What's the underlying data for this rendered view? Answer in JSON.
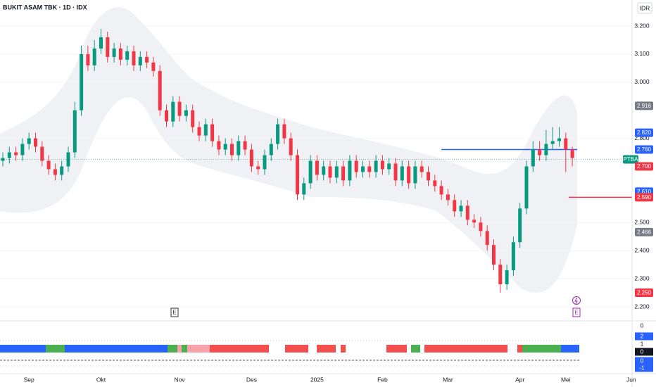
{
  "chart_data": {
    "type": "candlestick",
    "title": "BUKIT ASAM TBK · 1D · IDX",
    "currency": "IDR",
    "categories": [
      null,
      null,
      null,
      null,
      "Sep",
      null,
      null,
      null,
      null,
      null,
      null,
      null,
      null,
      null,
      null,
      "Okt",
      null,
      null,
      null,
      null,
      null,
      null,
      null,
      null,
      null,
      null,
      null,
      "Nov",
      null,
      null,
      null,
      null,
      null,
      null,
      null,
      null,
      null,
      null,
      "Des",
      null,
      null,
      null,
      null,
      null,
      null,
      null,
      null,
      null,
      "2025",
      null,
      null,
      null,
      null,
      null,
      null,
      null,
      null,
      null,
      "Feb",
      null,
      null,
      null,
      null,
      null,
      null,
      null,
      null,
      null,
      "Mar",
      null,
      null,
      null,
      null,
      null,
      null,
      null,
      null,
      null,
      null,
      "Apr",
      null,
      null,
      null,
      null,
      null,
      null,
      "Mei",
      null,
      null,
      null,
      null,
      null,
      null,
      null,
      null,
      null,
      "Jun"
    ],
    "open": [
      2720,
      2730,
      2750,
      2740,
      2780,
      2800,
      2770,
      2720,
      2690,
      2670,
      2700,
      2750,
      2900,
      3100,
      3060,
      3120,
      3160,
      3090,
      3120,
      3080,
      3110,
      3060,
      3090,
      3070,
      3040,
      2900,
      2860,
      2930,
      2880,
      2900,
      2840,
      2810,
      2850,
      2790,
      2760,
      2780,
      2740,
      2790,
      2760,
      2700,
      2690,
      2740,
      2780,
      2850,
      2800,
      2740,
      2600,
      2640,
      2720,
      2670,
      2700,
      2660,
      2700,
      2650,
      2720,
      2680,
      2700,
      2680,
      2720,
      2690,
      2710,
      2650,
      2700,
      2640,
      2700,
      2680,
      2650,
      2630,
      2600,
      2580,
      2540,
      2560,
      2510,
      2500,
      2470,
      2420,
      2350,
      2280,
      2330,
      2430,
      2550,
      2700,
      2760,
      2740,
      2780,
      2790,
      2800,
      2760,
      null,
      null,
      null,
      null,
      null,
      null,
      null,
      null,
      null
    ],
    "high": [
      2750,
      2770,
      2770,
      2800,
      2820,
      2820,
      2790,
      2740,
      2710,
      2720,
      2770,
      2930,
      3130,
      3130,
      3150,
      3190,
      3180,
      3140,
      3140,
      3130,
      3130,
      3110,
      3110,
      3090,
      3060,
      2920,
      2950,
      2950,
      2920,
      2920,
      2860,
      2870,
      2870,
      2810,
      2800,
      2800,
      2810,
      2810,
      2780,
      2720,
      2760,
      2800,
      2870,
      2870,
      2820,
      2760,
      2660,
      2740,
      2740,
      2720,
      2720,
      2720,
      2720,
      2740,
      2740,
      2720,
      2720,
      2740,
      2740,
      2730,
      2730,
      2720,
      2720,
      2720,
      2720,
      2700,
      2670,
      2650,
      2620,
      2600,
      2580,
      2580,
      2530,
      2520,
      2490,
      2440,
      2370,
      2350,
      2450,
      2570,
      2720,
      2790,
      2790,
      2830,
      2840,
      2840,
      2820,
      2770,
      null,
      null,
      null,
      null,
      null,
      null,
      null,
      null,
      null
    ],
    "low": [
      2700,
      2710,
      2720,
      2720,
      2760,
      2750,
      2700,
      2670,
      2650,
      2650,
      2680,
      2730,
      2880,
      3040,
      3040,
      3100,
      3070,
      3070,
      3060,
      3060,
      3040,
      3040,
      3050,
      3020,
      2880,
      2840,
      2840,
      2860,
      2860,
      2820,
      2790,
      2790,
      2770,
      2740,
      2740,
      2720,
      2720,
      2740,
      2680,
      2670,
      2670,
      2720,
      2760,
      2780,
      2720,
      2580,
      2580,
      2620,
      2650,
      2650,
      2640,
      2640,
      2630,
      2630,
      2660,
      2660,
      2660,
      2660,
      2670,
      2670,
      2630,
      2630,
      2620,
      2620,
      2660,
      2630,
      2610,
      2580,
      2560,
      2520,
      2520,
      2490,
      2480,
      2450,
      2400,
      2330,
      2250,
      2260,
      2310,
      2410,
      2530,
      2680,
      2720,
      2720,
      2760,
      2770,
      2680,
      2700,
      null,
      null,
      null,
      null,
      null,
      null,
      null,
      null,
      null
    ],
    "close": [
      2730,
      2750,
      2740,
      2780,
      2800,
      2770,
      2720,
      2690,
      2670,
      2700,
      2750,
      2900,
      3100,
      3060,
      3120,
      3160,
      3090,
      3120,
      3080,
      3110,
      3060,
      3090,
      3070,
      3040,
      2900,
      2860,
      2930,
      2880,
      2900,
      2840,
      2810,
      2850,
      2790,
      2760,
      2780,
      2740,
      2790,
      2760,
      2700,
      2690,
      2740,
      2780,
      2850,
      2800,
      2740,
      2600,
      2640,
      2720,
      2670,
      2700,
      2660,
      2700,
      2650,
      2720,
      2680,
      2700,
      2680,
      2720,
      2690,
      2710,
      2650,
      2700,
      2640,
      2700,
      2680,
      2650,
      2630,
      2600,
      2580,
      2540,
      2560,
      2510,
      2500,
      2470,
      2420,
      2350,
      2280,
      2330,
      2430,
      2550,
      2700,
      2760,
      2740,
      2780,
      2790,
      2800,
      2760,
      2730,
      null,
      null,
      null,
      null,
      null,
      null,
      null,
      null,
      null
    ],
    "up_color": "#089981",
    "down_color": "#f23645",
    "ylim": [
      2150,
      3290
    ],
    "yticks": [
      {
        "value": 3200,
        "label": "3.200"
      },
      {
        "value": 3100,
        "label": "3.100"
      },
      {
        "value": 3000,
        "label": "3.000"
      },
      {
        "value": 2800,
        "label": "2.800"
      },
      {
        "value": 2500,
        "label": "2.500"
      },
      {
        "value": 2400,
        "label": "2.400"
      },
      {
        "value": 2300,
        "label": "2.300"
      },
      {
        "value": 2200,
        "label": "2.200"
      }
    ],
    "price_labels": [
      {
        "value": 2916,
        "label": "2.916",
        "color": "#787b86"
      },
      {
        "value": 2820,
        "label": "2.820",
        "color": "#2962ff"
      },
      {
        "value": 2760,
        "label": "2.760",
        "color": "#2962ff"
      },
      {
        "value": 2725,
        "label": "PTBA",
        "color": "#089981"
      },
      {
        "value": 2700,
        "label": "2.700",
        "color": "#f23645"
      },
      {
        "value": 2610,
        "label": "2.610",
        "color": "#2962ff"
      },
      {
        "value": 2590,
        "label": "2.590",
        "color": "#f23645"
      },
      {
        "value": 2466,
        "label": "2.466",
        "color": "#787b86"
      },
      {
        "value": 2250,
        "label": "2.250",
        "color": "#f23645"
      }
    ],
    "levels": [
      {
        "value": 2760,
        "color": "#2962ff"
      },
      {
        "value": 2590,
        "color": "#f23645"
      }
    ],
    "event_markers": [
      "E",
      "E"
    ],
    "indicator_ticks": [
      "0",
      "2",
      "1",
      "0",
      "0",
      "-1"
    ]
  }
}
